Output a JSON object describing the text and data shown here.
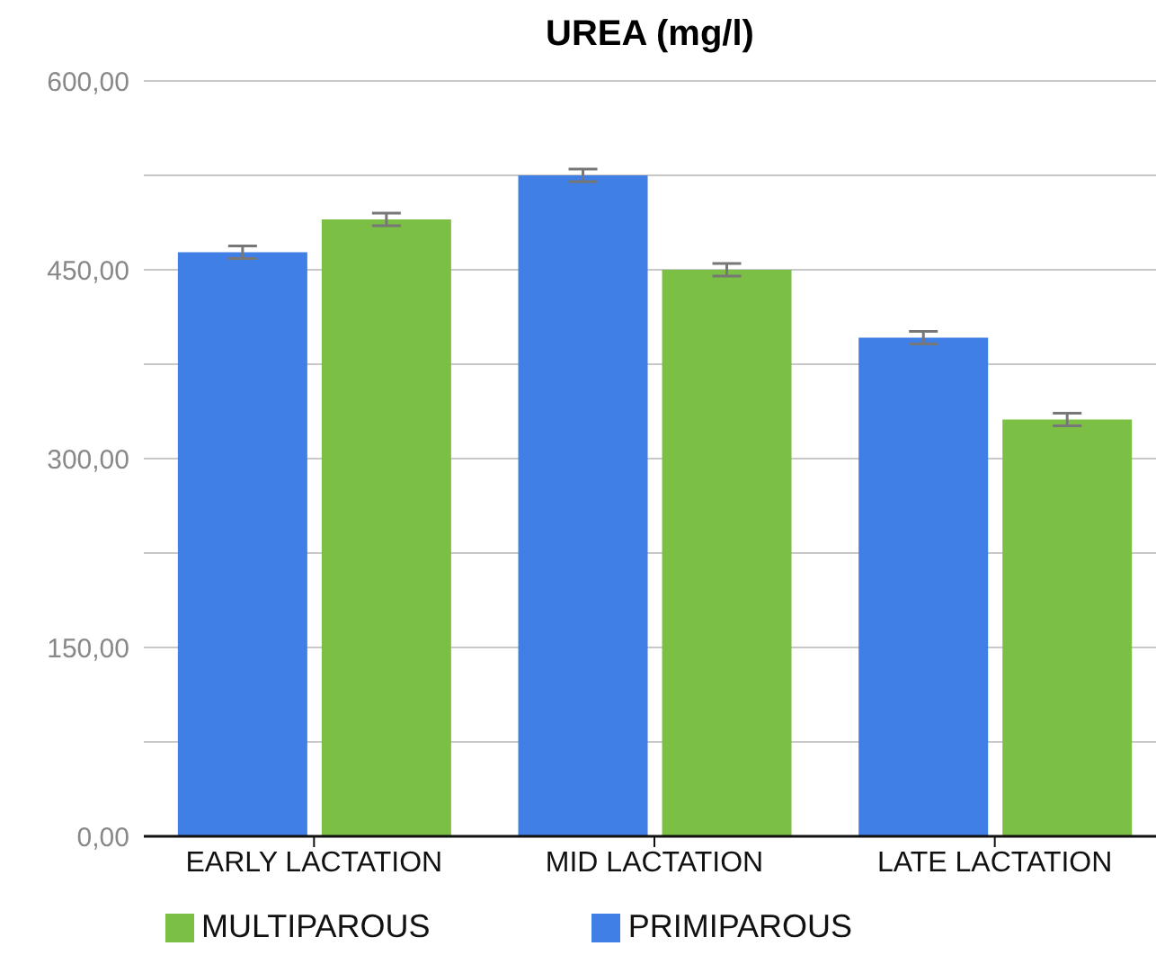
{
  "chart_data": {
    "type": "bar",
    "title": "UREA (mg/l)",
    "categories": [
      "EARLY LACTATION",
      "MID LACTATION",
      "LATE LACTATION"
    ],
    "series": [
      {
        "name": "PRIMIPAROUS",
        "color": "#3f7fe6",
        "values": [
          464,
          525,
          396
        ],
        "errors": [
          5,
          5,
          5
        ]
      },
      {
        "name": "MULTIPAROUS",
        "color": "#7cbf45",
        "values": [
          490,
          450,
          331
        ],
        "errors": [
          5,
          5,
          5
        ]
      }
    ],
    "ylim": [
      0,
      600
    ],
    "yticks": [
      {
        "value": 0,
        "label": "0,00"
      },
      {
        "value": 75,
        "label": null
      },
      {
        "value": 150,
        "label": "150,00"
      },
      {
        "value": 225,
        "label": null
      },
      {
        "value": 300,
        "label": "300,00"
      },
      {
        "value": 375,
        "label": null
      },
      {
        "value": 450,
        "label": "450,00"
      },
      {
        "value": 525,
        "label": null
      },
      {
        "value": 600,
        "label": "600,00"
      }
    ],
    "grid": "y",
    "legend": "bottom"
  }
}
